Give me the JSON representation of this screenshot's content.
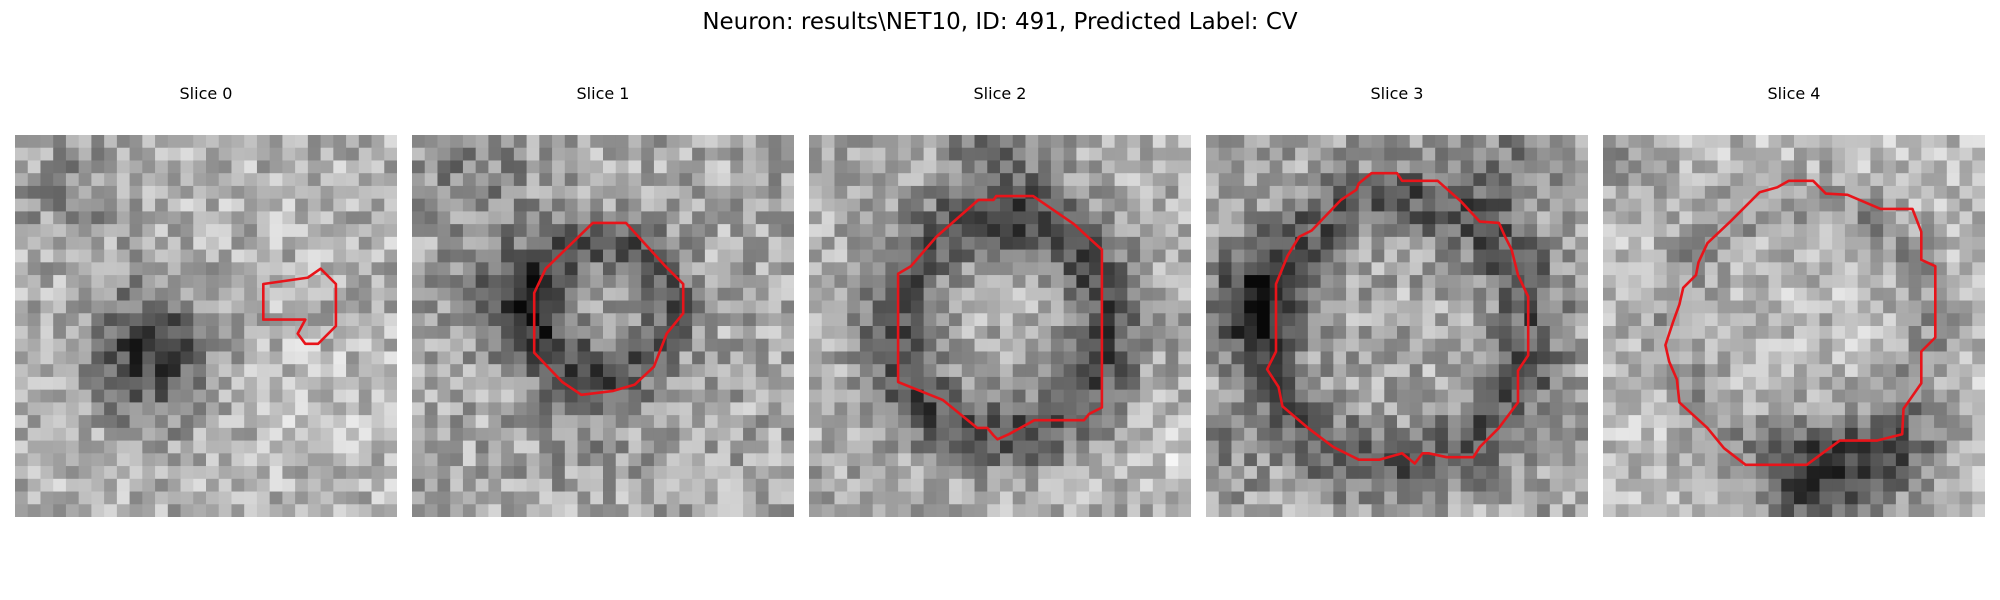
{
  "figure": {
    "title": "Neuron: results\\NET10, ID: 491, Predicted Label: CV",
    "colormap": "grayscale",
    "contour_color": "#e8141a"
  },
  "slices": [
    {
      "label": "Slice 0"
    },
    {
      "label": "Slice 1"
    },
    {
      "label": "Slice 2"
    },
    {
      "label": "Slice 3"
    },
    {
      "label": "Slice 4"
    }
  ]
}
